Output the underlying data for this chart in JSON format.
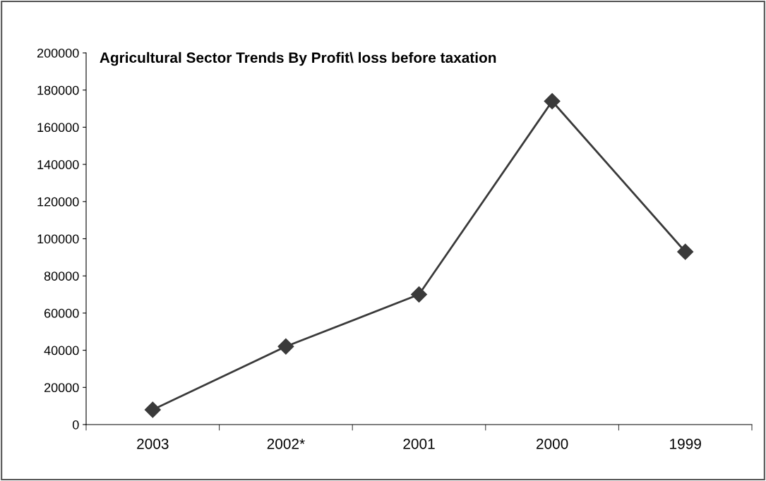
{
  "chart_data": {
    "type": "line",
    "title": "Agricultural Sector Trends By Profit\\ loss before taxation",
    "categories": [
      "2003",
      "2002*",
      "2001",
      "2000",
      "1999"
    ],
    "series": [
      {
        "color": "#3a3a3a",
        "values": [
          8000,
          42000,
          70000,
          174000,
          93000
        ]
      }
    ],
    "ylim": [
      0,
      200000
    ],
    "yticks": [
      0,
      20000,
      40000,
      60000,
      80000,
      100000,
      120000,
      140000,
      160000,
      180000,
      200000
    ],
    "grid": false,
    "legend": false,
    "marker": "diamond",
    "line_style": "solid"
  }
}
